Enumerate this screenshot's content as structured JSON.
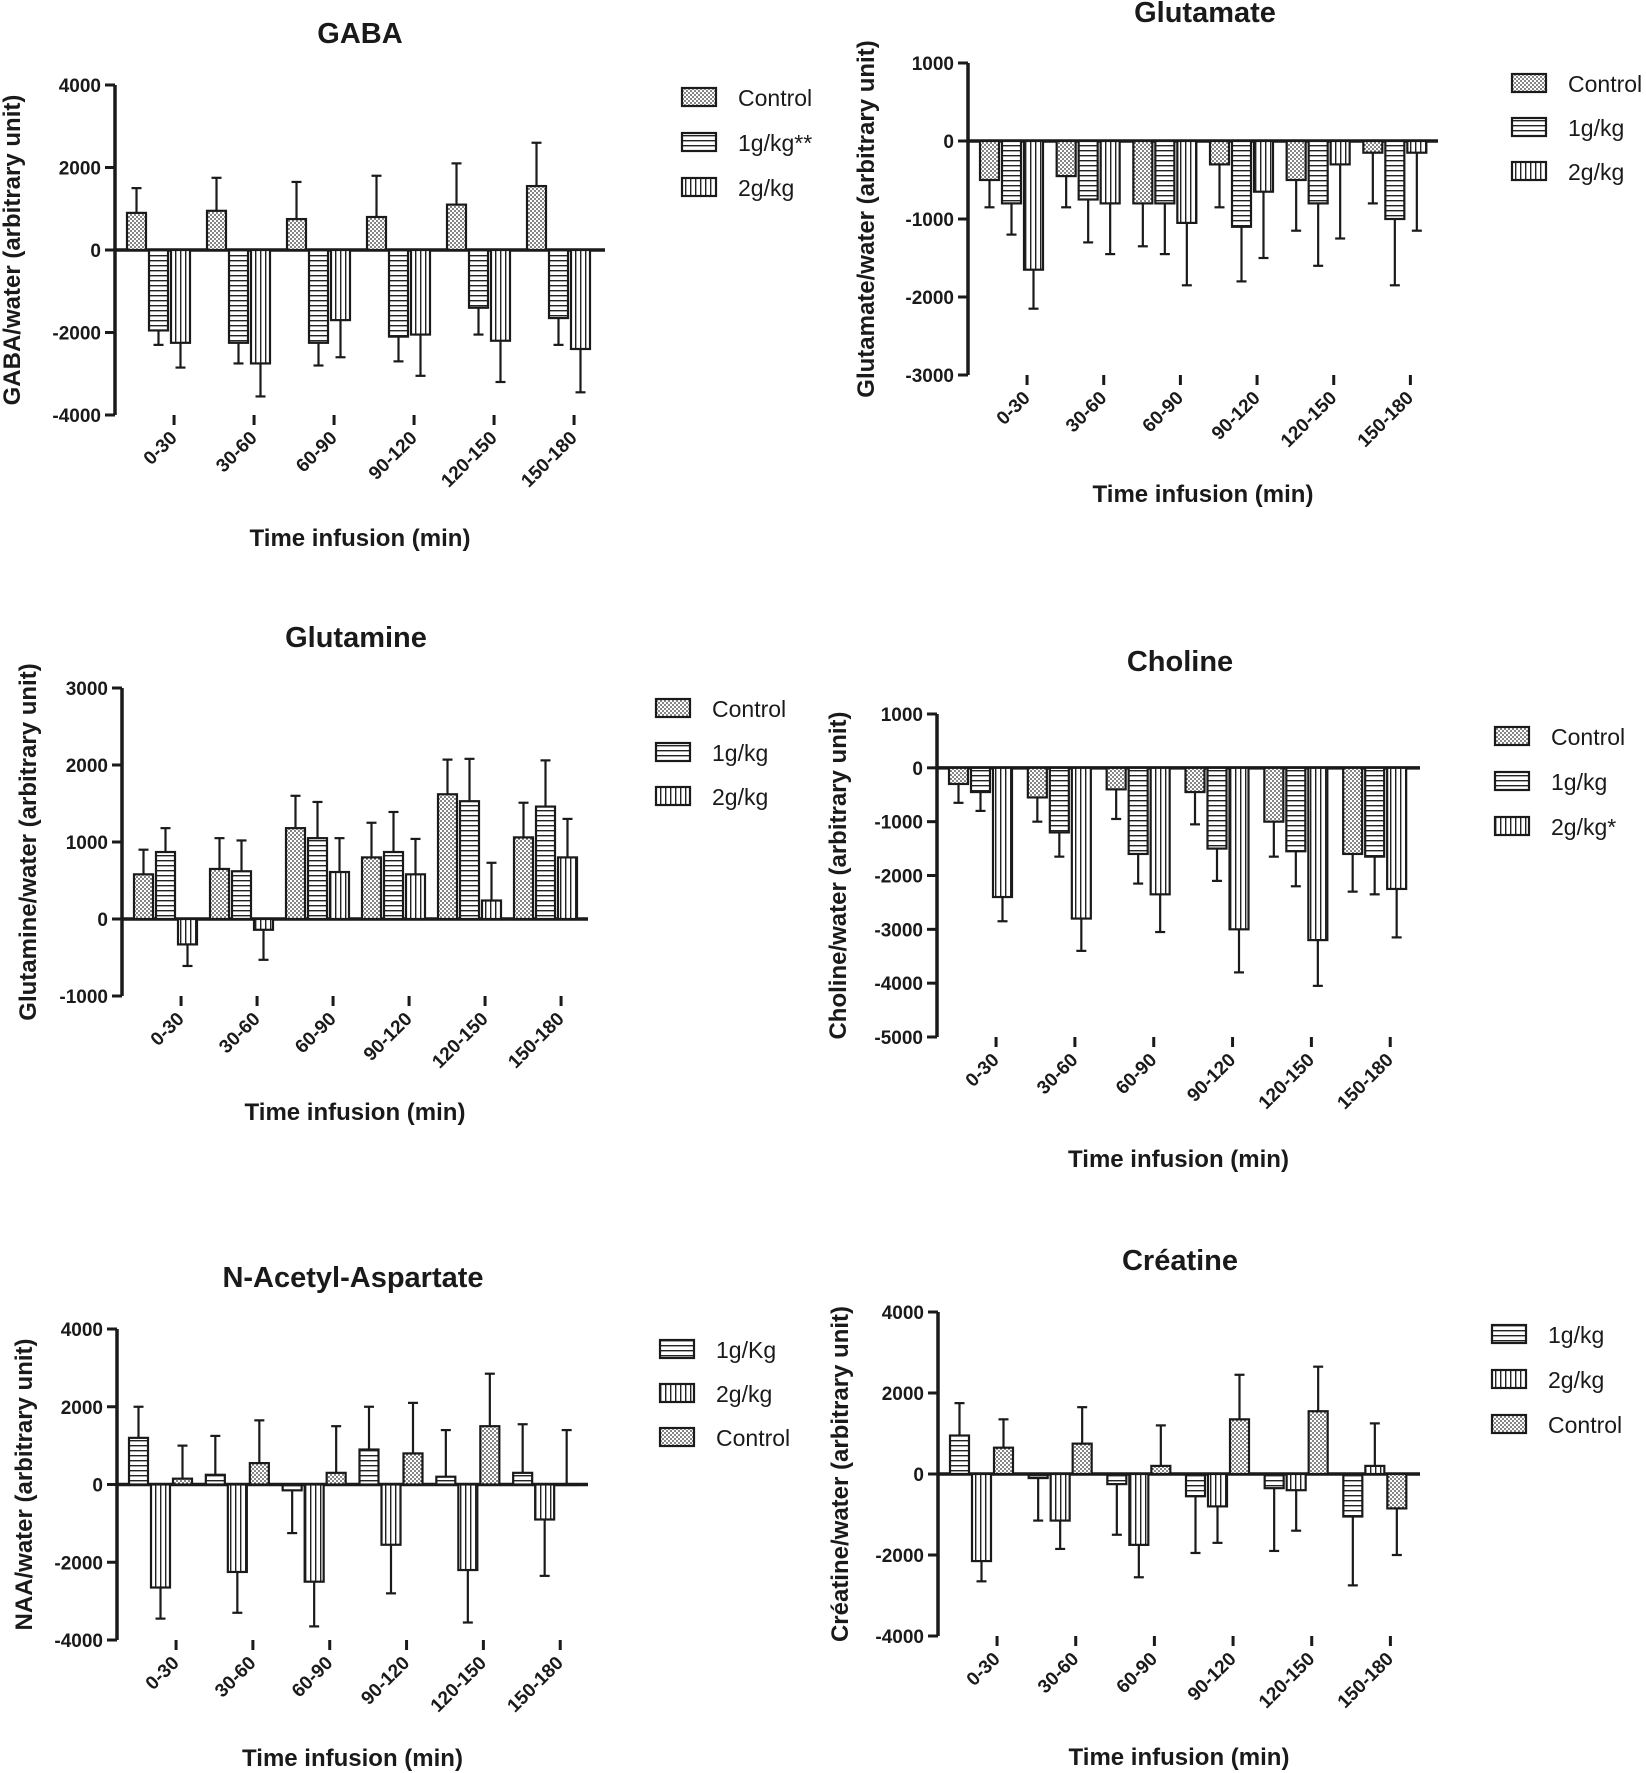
{
  "figure": {
    "description_free": true
  },
  "chart_data": [
    {
      "type": "bar",
      "title": "GABA",
      "xlabel": "Time infusion (min)",
      "ylabel": "GABA/water (arbitrary unit)",
      "ylim": [
        -4000,
        4000
      ],
      "yticks": [
        -4000,
        -2000,
        0,
        2000,
        4000
      ],
      "tick_labels": [
        "-4000",
        "-2000",
        "0",
        "2000",
        "4000"
      ],
      "categories": [
        "0-30",
        "30-60",
        "60-90",
        "90-120",
        "120-150",
        "150-180"
      ],
      "series": [
        {
          "name": "Control",
          "pattern": "dots",
          "values": [
            900,
            950,
            750,
            800,
            1100,
            1550
          ],
          "errors": [
            600,
            800,
            900,
            1000,
            1000,
            1050
          ]
        },
        {
          "name": "1g/kg**",
          "pattern": "hlines",
          "values": [
            -1950,
            -2250,
            -2250,
            -2100,
            -1400,
            -1650
          ],
          "errors": [
            350,
            500,
            550,
            600,
            650,
            650
          ]
        },
        {
          "name": "2g/kg",
          "pattern": "vlines",
          "values": [
            -2250,
            -2750,
            -1700,
            -2050,
            -2200,
            -2400
          ],
          "errors": [
            600,
            800,
            900,
            1000,
            1000,
            1050
          ]
        }
      ],
      "legend_order": [
        0,
        1,
        2
      ]
    },
    {
      "type": "bar",
      "title": "Glutamate",
      "xlabel": "Time infusion (min)",
      "ylabel": "Glutamate/water (arbitrary unit)",
      "ylim": [
        -3000,
        1000
      ],
      "yticks": [
        -3000,
        -2000,
        -1000,
        0,
        1000
      ],
      "tick_labels": [
        "-3000",
        "-2000",
        "-1000",
        "0",
        "1000"
      ],
      "categories": [
        "0-30",
        "30-60",
        "60-90",
        "90-120",
        "120-150",
        "150-180"
      ],
      "series": [
        {
          "name": "Control",
          "pattern": "dots",
          "values": [
            -500,
            -450,
            -800,
            -300,
            -500,
            -150
          ],
          "errors": [
            350,
            400,
            550,
            550,
            650,
            650
          ]
        },
        {
          "name": "1g/kg",
          "pattern": "hlines",
          "values": [
            -800,
            -750,
            -800,
            -1100,
            -800,
            -1000
          ],
          "errors": [
            400,
            550,
            650,
            700,
            800,
            850
          ]
        },
        {
          "name": "2g/kg",
          "pattern": "vlines",
          "values": [
            -1650,
            -800,
            -1050,
            -650,
            -300,
            -150
          ],
          "errors": [
            500,
            650,
            800,
            850,
            950,
            1000
          ]
        }
      ],
      "legend_order": [
        0,
        1,
        2
      ]
    },
    {
      "type": "bar",
      "title": "Glutamine",
      "xlabel": "Time infusion (min)",
      "ylabel": "Glutamine/water (arbitrary unit)",
      "ylim": [
        -1000,
        3000
      ],
      "yticks": [
        -1000,
        0,
        1000,
        2000,
        3000
      ],
      "tick_labels": [
        "-1000",
        "0",
        "1000",
        "2000",
        "3000"
      ],
      "categories": [
        "0-30",
        "30-60",
        "60-90",
        "90-120",
        "120-150",
        "150-180"
      ],
      "series": [
        {
          "name": "Control",
          "pattern": "dots",
          "values": [
            580,
            650,
            1180,
            800,
            1620,
            1060
          ],
          "errors": [
            320,
            400,
            420,
            450,
            450,
            450
          ]
        },
        {
          "name": "1g/kg",
          "pattern": "hlines",
          "values": [
            870,
            620,
            1050,
            870,
            1530,
            1460
          ],
          "errors": [
            310,
            400,
            470,
            520,
            550,
            600
          ]
        },
        {
          "name": "2g/kg",
          "pattern": "vlines",
          "values": [
            -330,
            -140,
            610,
            580,
            240,
            800
          ],
          "errors": [
            280,
            390,
            440,
            460,
            490,
            500
          ]
        }
      ],
      "legend_order": [
        0,
        1,
        2
      ]
    },
    {
      "type": "bar",
      "title": "Choline",
      "xlabel": "Time infusion (min)",
      "ylabel": "Choline/water (arbitrary unit)",
      "ylim": [
        -5000,
        1000
      ],
      "yticks": [
        -5000,
        -4000,
        -3000,
        -2000,
        -1000,
        0,
        1000
      ],
      "tick_labels": [
        "-5000",
        "-4000",
        "-3000",
        "-2000",
        "-1000",
        "0",
        "1000"
      ],
      "categories": [
        "0-30",
        "30-60",
        "60-90",
        "90-120",
        "120-150",
        "150-180"
      ],
      "series": [
        {
          "name": "Control",
          "pattern": "dots",
          "values": [
            -300,
            -550,
            -400,
            -450,
            -1000,
            -1600
          ],
          "errors": [
            350,
            450,
            550,
            600,
            650,
            700
          ]
        },
        {
          "name": "1g/kg",
          "pattern": "hlines",
          "values": [
            -450,
            -1200,
            -1600,
            -1500,
            -1550,
            -1650
          ],
          "errors": [
            350,
            450,
            550,
            600,
            650,
            700
          ]
        },
        {
          "name": "2g/kg*",
          "pattern": "vlines",
          "values": [
            -2400,
            -2800,
            -2350,
            -3000,
            -3200,
            -2250
          ],
          "errors": [
            450,
            600,
            700,
            800,
            850,
            900
          ]
        }
      ],
      "legend_order": [
        0,
        1,
        2
      ]
    },
    {
      "type": "bar",
      "title": "N-Acetyl-Aspartate",
      "xlabel": "Time infusion (min)",
      "ylabel": "NAA/water (arbitrary unit)",
      "ylim": [
        -4000,
        4000
      ],
      "yticks": [
        -4000,
        -2000,
        0,
        2000,
        4000
      ],
      "tick_labels": [
        "-4000",
        "-2000",
        "0",
        "2000",
        "4000"
      ],
      "categories": [
        "0-30",
        "30-60",
        "60-90",
        "90-120",
        "120-150",
        "150-180"
      ],
      "series": [
        {
          "name": "1g/Kg",
          "pattern": "hlines",
          "values": [
            1200,
            250,
            -150,
            900,
            200,
            300
          ],
          "errors": [
            800,
            1000,
            1100,
            1100,
            1200,
            1250
          ]
        },
        {
          "name": "2g/kg",
          "pattern": "vlines",
          "values": [
            -2650,
            -2250,
            -2500,
            -1550,
            -2200,
            -900
          ],
          "errors": [
            800,
            1050,
            1150,
            1250,
            1350,
            1450
          ]
        },
        {
          "name": "Control",
          "pattern": "dots",
          "values": [
            150,
            550,
            300,
            800,
            1500,
            0
          ],
          "errors": [
            850,
            1100,
            1200,
            1300,
            1350,
            1400
          ]
        }
      ],
      "legend_order": [
        0,
        1,
        2
      ]
    },
    {
      "type": "bar",
      "title": "Créatine",
      "xlabel": "Time infusion (min)",
      "ylabel": "Créatine/water (arbitrary unit)",
      "ylim": [
        -4000,
        4000
      ],
      "yticks": [
        -4000,
        -2000,
        0,
        2000,
        4000
      ],
      "tick_labels": [
        "-4000",
        "-2000",
        "0",
        "2000",
        "4000"
      ],
      "categories": [
        "0-30",
        "30-60",
        "60-90",
        "90-120",
        "120-150",
        "150-180"
      ],
      "series": [
        {
          "name": "1g/kg",
          "pattern": "hlines",
          "values": [
            950,
            -100,
            -250,
            -550,
            -350,
            -1050
          ],
          "errors": [
            800,
            1050,
            1250,
            1400,
            1550,
            1700
          ]
        },
        {
          "name": "2g/kg",
          "pattern": "vlines",
          "values": [
            -2150,
            -1150,
            -1750,
            -800,
            -400,
            200
          ],
          "errors": [
            500,
            700,
            800,
            900,
            1000,
            1050
          ]
        },
        {
          "name": "Control",
          "pattern": "dots",
          "values": [
            650,
            750,
            200,
            1350,
            1550,
            -850
          ],
          "errors": [
            700,
            900,
            1000,
            1100,
            1100,
            1150
          ]
        }
      ],
      "legend_order": [
        0,
        1,
        2
      ]
    }
  ]
}
